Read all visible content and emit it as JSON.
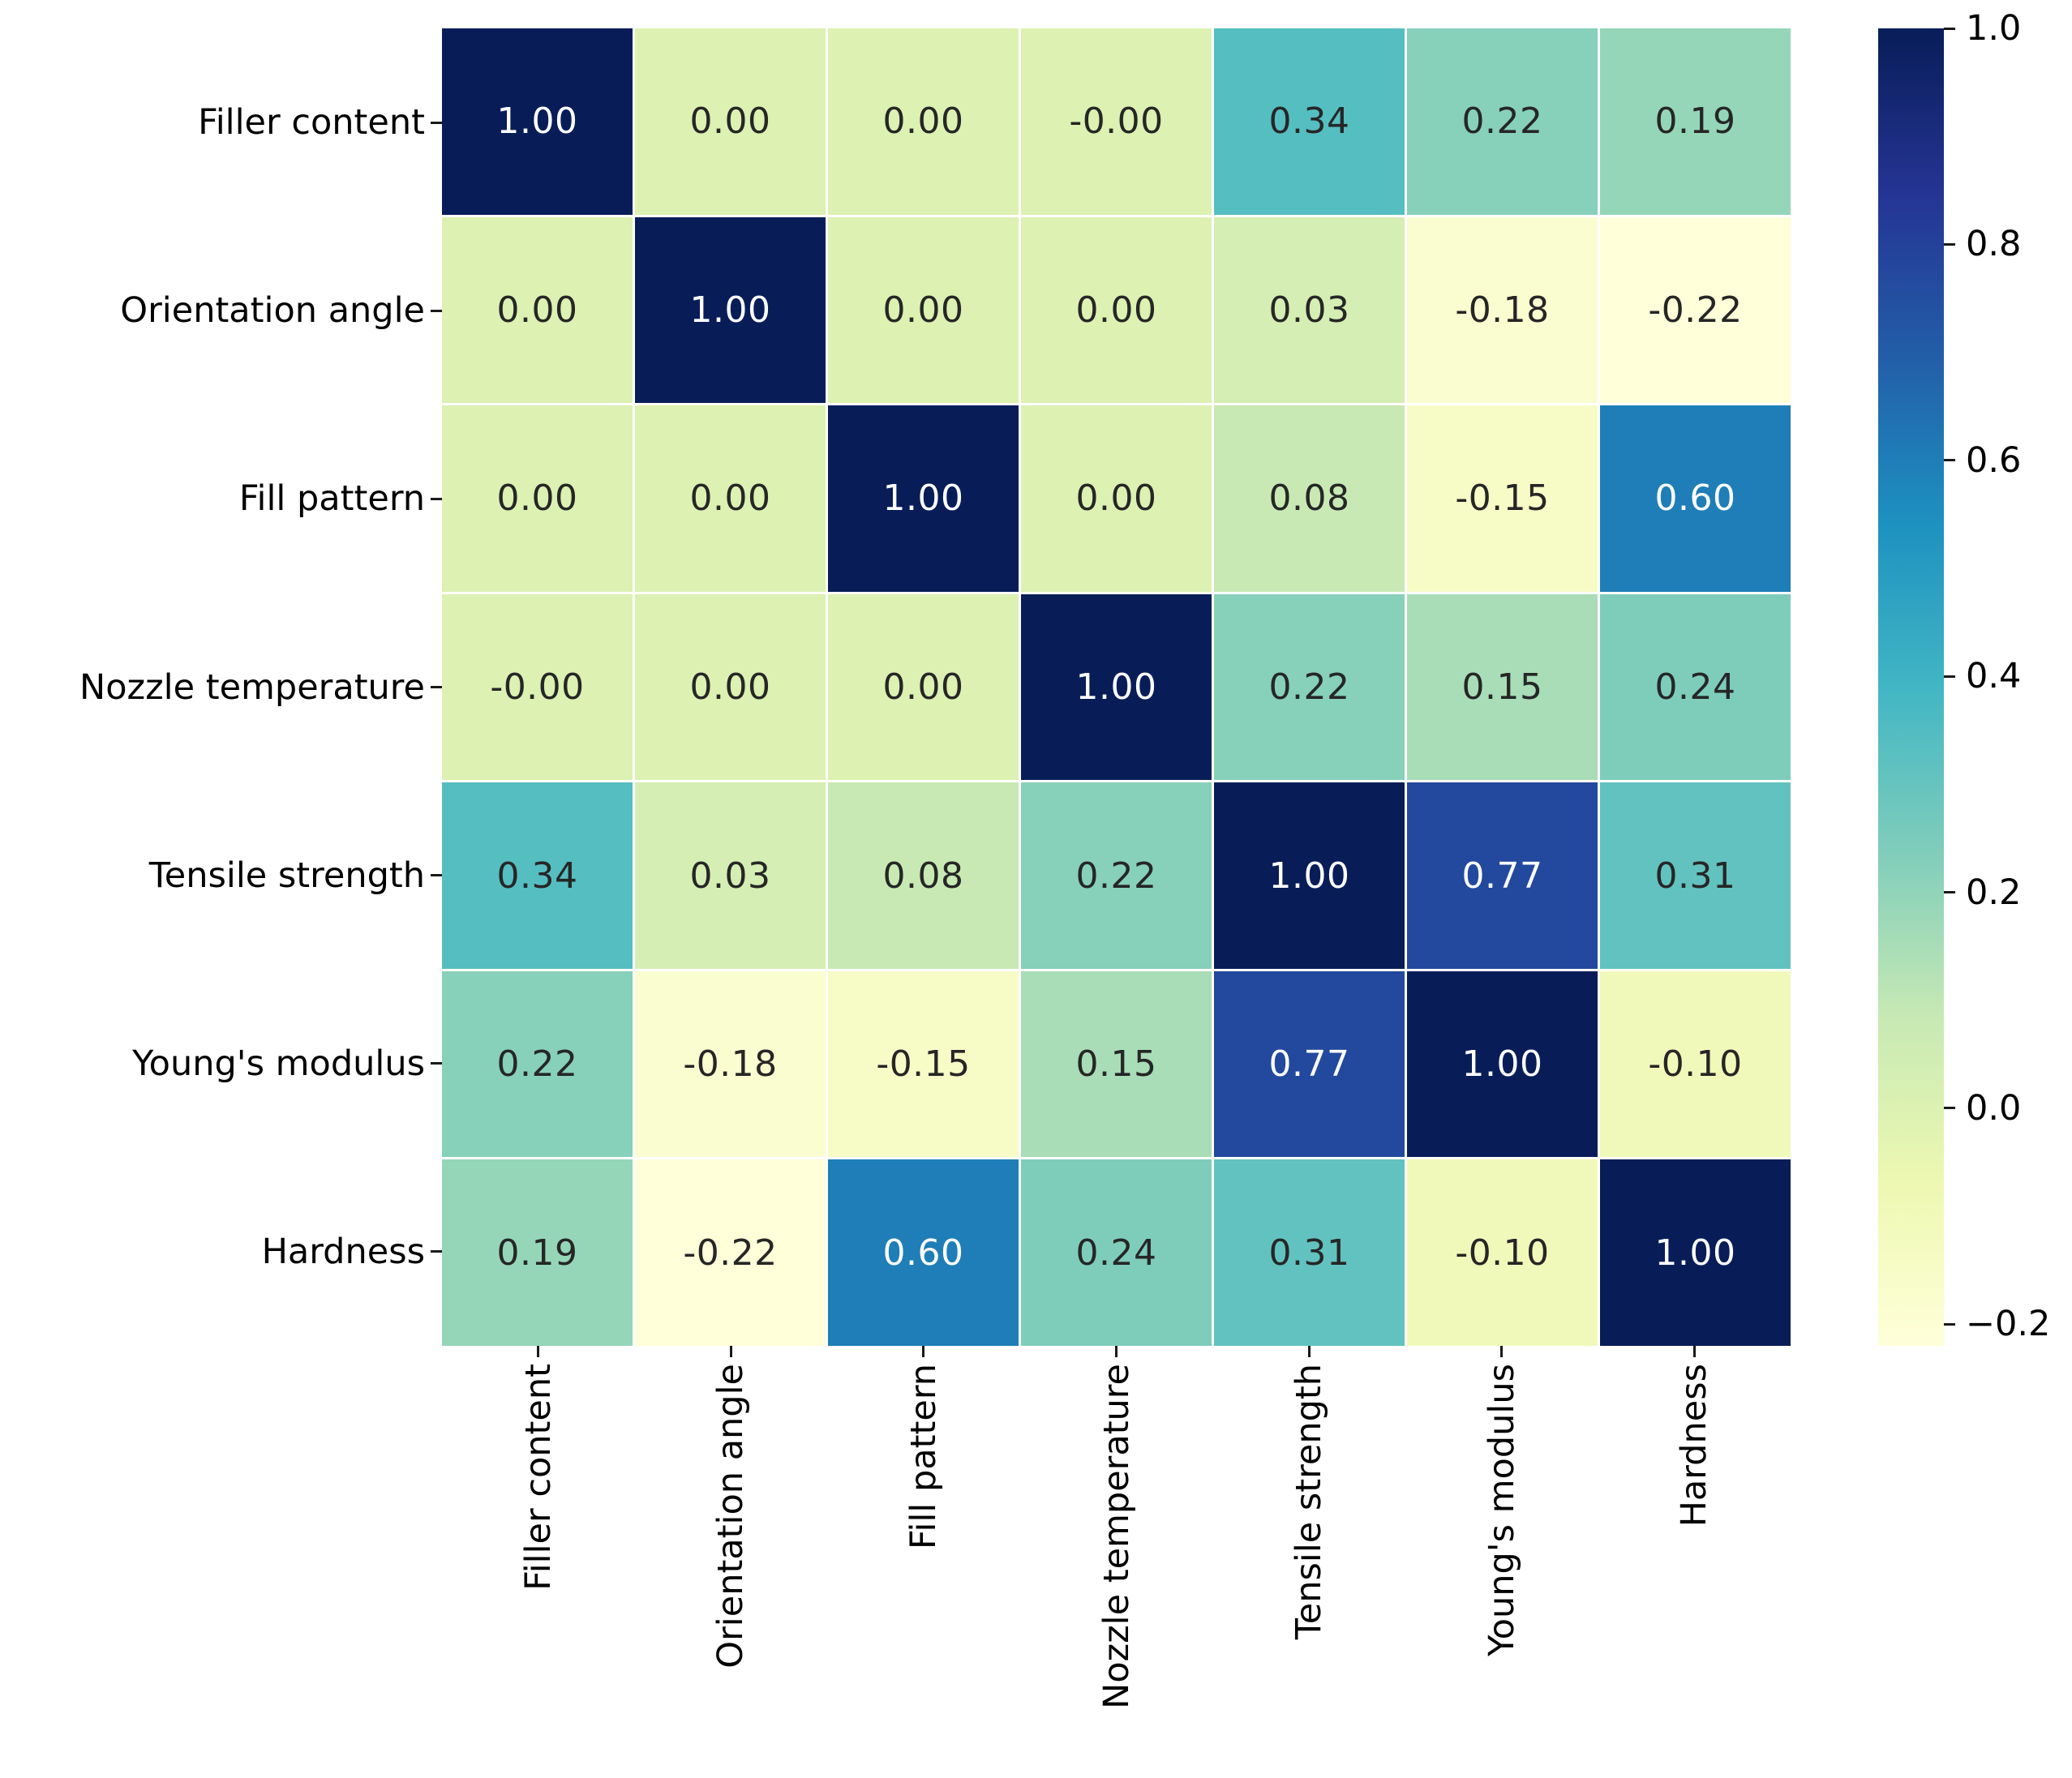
{
  "figure": {
    "background": "#ffffff",
    "grid_line_color": "#ffffff"
  },
  "chart_data": {
    "type": "heatmap",
    "title": "",
    "variables": [
      "Filler content",
      "Orientation angle",
      "Fill pattern",
      "Nozzle temperature",
      "Tensile strength",
      "Young's modulus",
      "Hardness"
    ],
    "y_tick_labels": [
      "Filler content",
      "Orientation angle",
      "Fill pattern",
      "Nozzle temperature",
      "Tensile strength",
      "Young's modulus",
      "Hardness"
    ],
    "x_tick_labels": [
      "Filler content",
      "Orientation angle",
      "Fill pattern",
      "Nozzle temperature",
      "Tensile strength",
      "Young's modulus",
      "Hardness"
    ],
    "matrix_display": [
      [
        "1.00",
        "0.00",
        "0.00",
        "-0.00",
        "0.34",
        "0.22",
        "0.19"
      ],
      [
        "0.00",
        "1.00",
        "0.00",
        "0.00",
        "0.03",
        "-0.18",
        "-0.22"
      ],
      [
        "0.00",
        "0.00",
        "1.00",
        "0.00",
        "0.08",
        "-0.15",
        "0.60"
      ],
      [
        "-0.00",
        "0.00",
        "0.00",
        "1.00",
        "0.22",
        "0.15",
        "0.24"
      ],
      [
        "0.34",
        "0.03",
        "0.08",
        "0.22",
        "1.00",
        "0.77",
        "0.31"
      ],
      [
        "0.22",
        "-0.18",
        "-0.15",
        "0.15",
        "0.77",
        "1.00",
        "-0.10"
      ],
      [
        "0.19",
        "-0.22",
        "0.60",
        "0.24",
        "0.31",
        "-0.10",
        "1.00"
      ]
    ],
    "matrix_values": [
      [
        1.0,
        0.0,
        0.0,
        -0.0,
        0.34,
        0.22,
        0.19
      ],
      [
        0.0,
        1.0,
        0.0,
        0.0,
        0.03,
        -0.18,
        -0.22
      ],
      [
        0.0,
        0.0,
        1.0,
        0.0,
        0.08,
        -0.15,
        0.6
      ],
      [
        -0.0,
        0.0,
        0.0,
        1.0,
        0.22,
        0.15,
        0.24
      ],
      [
        0.34,
        0.03,
        0.08,
        0.22,
        1.0,
        0.77,
        0.31
      ],
      [
        0.22,
        -0.18,
        -0.15,
        0.15,
        0.77,
        1.0,
        -0.1
      ],
      [
        0.19,
        -0.22,
        0.6,
        0.24,
        0.31,
        -0.1,
        1.0
      ]
    ],
    "vmin": -0.22,
    "vmax": 1.0,
    "colormap": {
      "name": "YlGnBu",
      "stops": [
        {
          "t": 0.0,
          "color": "#ffffd9"
        },
        {
          "t": 0.125,
          "color": "#edf8b1"
        },
        {
          "t": 0.25,
          "color": "#c7e9b4"
        },
        {
          "t": 0.375,
          "color": "#7fcdbb"
        },
        {
          "t": 0.5,
          "color": "#41b6c4"
        },
        {
          "t": 0.625,
          "color": "#1d91c0"
        },
        {
          "t": 0.75,
          "color": "#225ea8"
        },
        {
          "t": 0.875,
          "color": "#253494"
        },
        {
          "t": 1.0,
          "color": "#081d58"
        }
      ]
    },
    "colorbar": {
      "position": "right",
      "tick_labels": [
        "1.0",
        "0.8",
        "0.6",
        "0.4",
        "0.2",
        "0.0",
        "−0.2"
      ],
      "tick_values": [
        1.0,
        0.8,
        0.6,
        0.4,
        0.2,
        0.0,
        -0.2
      ]
    },
    "annotation_colors": {
      "dark_text": "#262626",
      "light_text": "#ffffff"
    },
    "legend_position": "none",
    "grid": false
  }
}
